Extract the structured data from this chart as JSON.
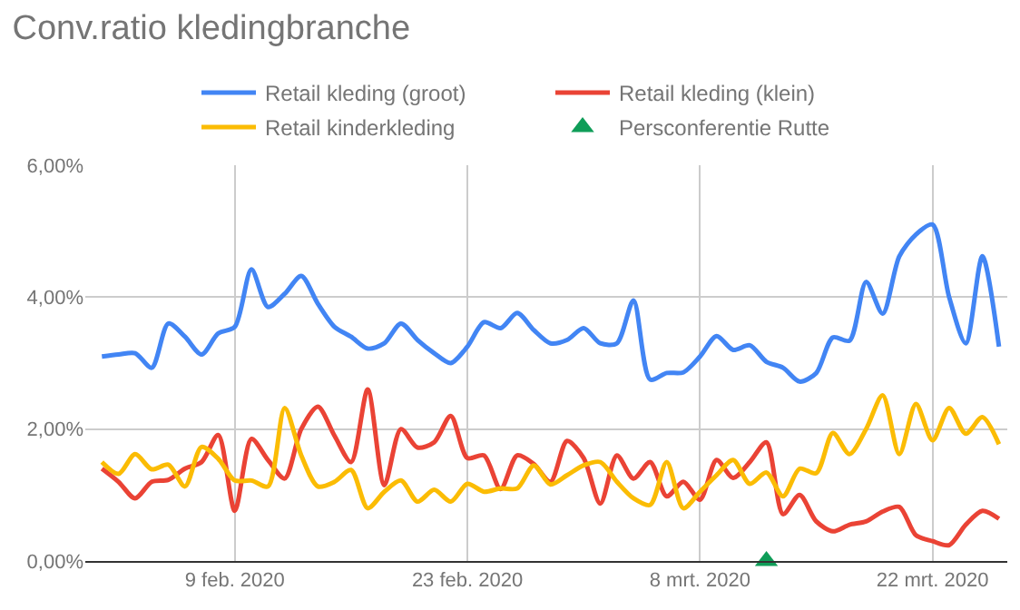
{
  "chart_data": {
    "type": "line",
    "title": "Conv.ratio kledingbranche",
    "x": [
      "2020-02-01",
      "2020-02-02",
      "2020-02-03",
      "2020-02-04",
      "2020-02-05",
      "2020-02-06",
      "2020-02-07",
      "2020-02-08",
      "2020-02-09",
      "2020-02-10",
      "2020-02-11",
      "2020-02-12",
      "2020-02-13",
      "2020-02-14",
      "2020-02-15",
      "2020-02-16",
      "2020-02-17",
      "2020-02-18",
      "2020-02-19",
      "2020-02-20",
      "2020-02-21",
      "2020-02-22",
      "2020-02-23",
      "2020-02-24",
      "2020-02-25",
      "2020-02-26",
      "2020-02-27",
      "2020-02-28",
      "2020-02-29",
      "2020-03-01",
      "2020-03-02",
      "2020-03-03",
      "2020-03-04",
      "2020-03-05",
      "2020-03-06",
      "2020-03-07",
      "2020-03-08",
      "2020-03-09",
      "2020-03-10",
      "2020-03-11",
      "2020-03-12",
      "2020-03-13",
      "2020-03-14",
      "2020-03-15",
      "2020-03-16",
      "2020-03-17",
      "2020-03-18",
      "2020-03-19",
      "2020-03-20",
      "2020-03-21",
      "2020-03-22",
      "2020-03-23",
      "2020-03-24",
      "2020-03-25",
      "2020-03-26"
    ],
    "series": [
      {
        "name": "Retail kleding (groot)",
        "color": "#4285f4",
        "values": [
          3.1,
          3.13,
          3.15,
          2.93,
          3.6,
          3.4,
          3.13,
          3.45,
          3.55,
          4.42,
          3.85,
          4.05,
          4.32,
          3.9,
          3.55,
          3.4,
          3.22,
          3.3,
          3.6,
          3.35,
          3.15,
          3.0,
          3.25,
          3.62,
          3.53,
          3.76,
          3.5,
          3.3,
          3.35,
          3.53,
          3.3,
          3.3,
          3.95,
          2.75,
          2.85,
          2.86,
          3.1,
          3.41,
          3.2,
          3.27,
          3.02,
          2.93,
          2.72,
          2.85,
          3.39,
          3.34,
          4.23,
          3.75,
          4.62,
          4.95,
          5.1,
          4.0,
          3.3,
          4.62,
          3.25
        ]
      },
      {
        "name": "Retail kleding (klein)",
        "color": "#ea4335",
        "values": [
          1.4,
          1.2,
          0.95,
          1.2,
          1.23,
          1.4,
          1.5,
          1.91,
          0.76,
          1.85,
          1.53,
          1.25,
          2.0,
          2.34,
          1.9,
          1.5,
          2.6,
          1.15,
          2.0,
          1.72,
          1.8,
          2.2,
          1.56,
          1.6,
          1.09,
          1.6,
          1.47,
          1.2,
          1.82,
          1.56,
          0.87,
          1.6,
          1.25,
          1.5,
          0.98,
          1.2,
          0.93,
          1.53,
          1.26,
          1.5,
          1.8,
          0.71,
          1.0,
          0.6,
          0.45,
          0.55,
          0.6,
          0.75,
          0.82,
          0.39,
          0.3,
          0.24,
          0.55,
          0.76,
          0.64
        ]
      },
      {
        "name": "Retail kinderkleding",
        "color": "#fbbc04",
        "values": [
          1.5,
          1.32,
          1.62,
          1.39,
          1.46,
          1.13,
          1.73,
          1.55,
          1.22,
          1.22,
          1.13,
          2.32,
          1.6,
          1.13,
          1.2,
          1.38,
          0.8,
          1.05,
          1.22,
          0.9,
          1.08,
          0.9,
          1.17,
          1.05,
          1.1,
          1.1,
          1.45,
          1.16,
          1.3,
          1.45,
          1.5,
          1.2,
          0.95,
          0.85,
          1.5,
          0.8,
          1.05,
          1.3,
          1.53,
          1.17,
          1.34,
          0.98,
          1.4,
          1.33,
          1.94,
          1.62,
          2.0,
          2.51,
          1.62,
          2.38,
          1.83,
          2.32,
          1.93,
          2.18,
          1.77
        ]
      },
      {
        "name": "Persconferentie Rutte",
        "type": "scatter",
        "marker": "triangle",
        "color": "#0f9d58",
        "x": [
          "2020-03-12"
        ],
        "values": [
          0
        ]
      }
    ],
    "xlim": [
      "2020-01-31",
      "2020-03-26T12:00"
    ],
    "xticks": [
      {
        "value": "2020-02-09",
        "label": "9 feb. 2020"
      },
      {
        "value": "2020-02-23",
        "label": "23 feb. 2020"
      },
      {
        "value": "2020-03-08",
        "label": "8 mrt. 2020"
      },
      {
        "value": "2020-03-22",
        "label": "22 mrt. 2020"
      }
    ],
    "ylim": [
      0,
      6
    ],
    "yticks": [
      {
        "value": 0,
        "label": "0,00%"
      },
      {
        "value": 2,
        "label": "2,00%"
      },
      {
        "value": 4,
        "label": "4,00%"
      },
      {
        "value": 6,
        "label": "6,00%"
      }
    ],
    "grid": true,
    "legend": "top"
  }
}
